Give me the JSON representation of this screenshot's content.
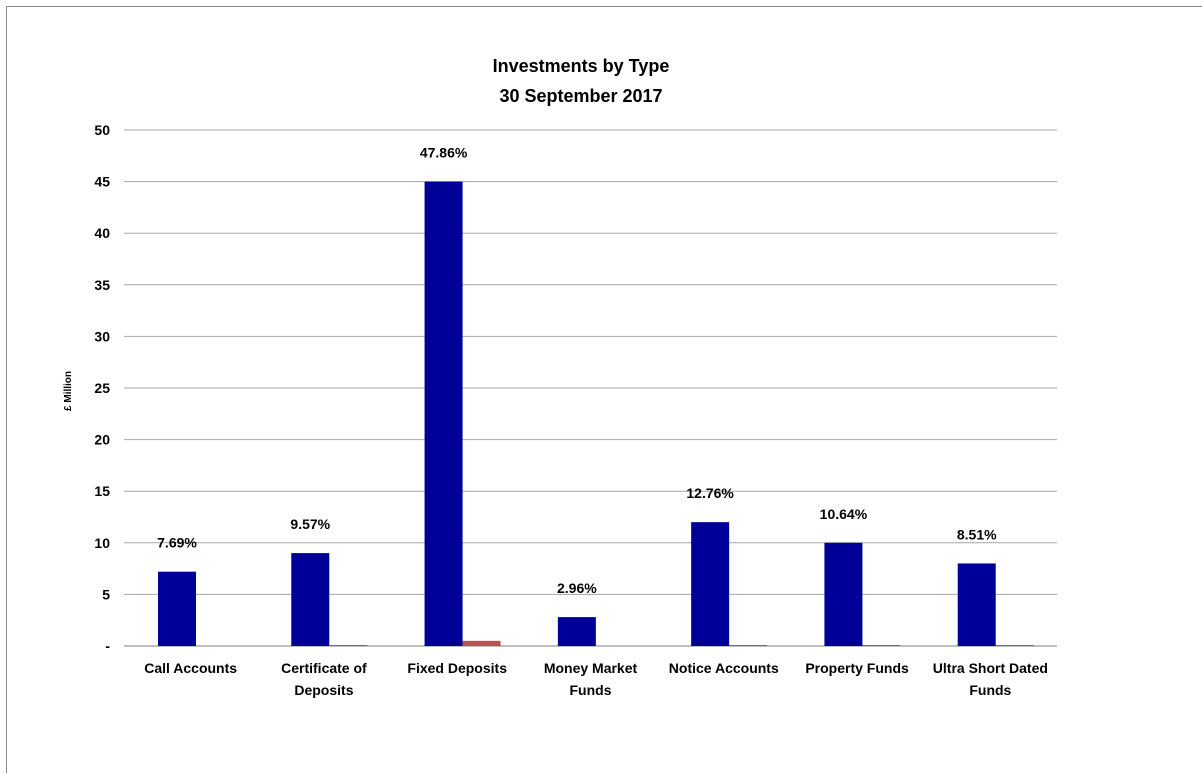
{
  "chart_data": {
    "type": "bar",
    "title": "Investments by Type",
    "subtitle": "30 September 2017",
    "xlabel": "",
    "ylabel": "£ Million",
    "ylim": [
      0,
      50
    ],
    "yticks": [
      0,
      5,
      10,
      15,
      20,
      25,
      30,
      35,
      40,
      45,
      50
    ],
    "ytick_labels": [
      "-",
      "5",
      "10",
      "15",
      "20",
      "25",
      "30",
      "35",
      "40",
      "45",
      "50"
    ],
    "grid": true,
    "legend": "none",
    "categories": [
      [
        "Call Accounts"
      ],
      [
        "Certificate of",
        "Deposits"
      ],
      [
        "Fixed Deposits"
      ],
      [
        "Money Market",
        "Funds"
      ],
      [
        "Notice Accounts"
      ],
      [
        "Property Funds"
      ],
      [
        "Ultra Short Dated",
        "Funds"
      ]
    ],
    "series": [
      {
        "color": "#000099",
        "values": [
          7.2,
          9.0,
          45.0,
          2.8,
          12.0,
          10.0,
          8.0
        ],
        "labels": [
          "7.69%",
          "9.57%",
          "47.86%",
          "2.96%",
          "12.76%",
          "10.64%",
          "8.51%"
        ]
      },
      {
        "color": "#c0504d",
        "values": [
          0.0,
          0.1,
          0.5,
          0.0,
          0.1,
          0.1,
          0.1
        ],
        "labels": [
          "",
          "",
          "",
          "",
          "",
          "",
          ""
        ]
      }
    ]
  },
  "colors": {
    "grid": "#a6a6a6",
    "axis": "#7f7f7f",
    "frame": "#8c8c8c"
  }
}
